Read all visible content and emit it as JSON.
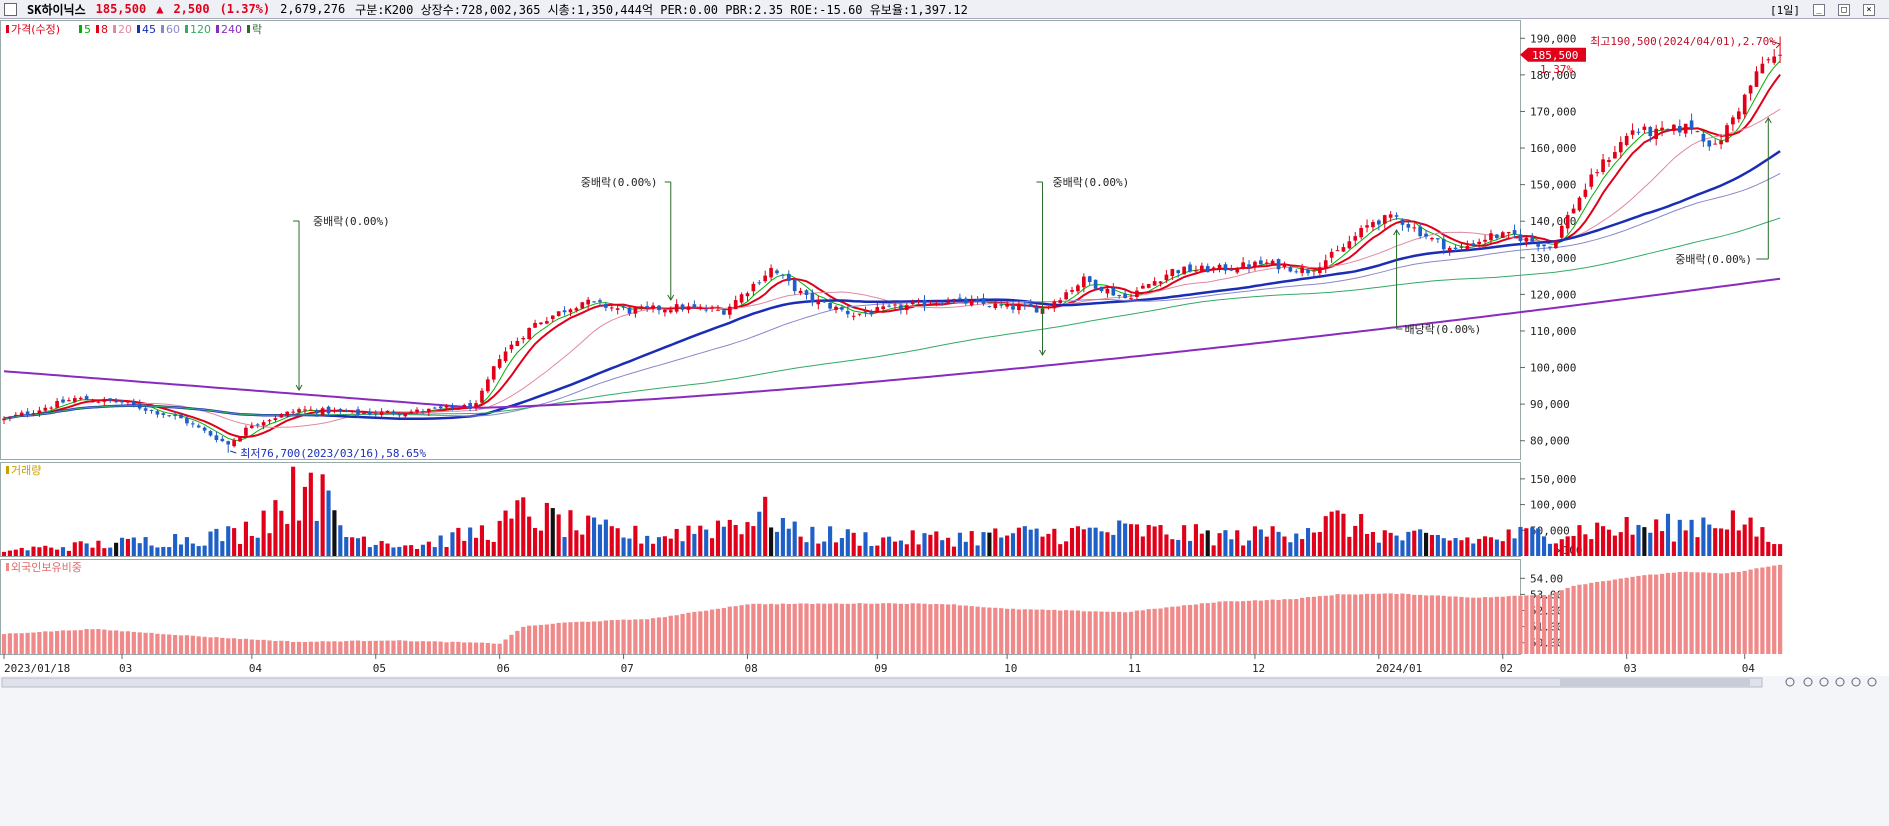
{
  "header": {
    "name": "SK하이닉스",
    "price": "185,500",
    "change_arrow": "▲",
    "change": "2,500",
    "change_pct": "(1.37%)",
    "volume": "2,679,276",
    "info": "구분:K200 상장수:728,002,365 시총:1,350,444억 PER:0.00 PBR:2.35 ROE:-15.60 유보율:1,397.12",
    "period": "[1일]"
  },
  "price_panel": {
    "legend": [
      {
        "label": "가격(수정)",
        "color": "#e0001a"
      },
      {
        "label": "5",
        "color": "#00b000"
      },
      {
        "label": "8",
        "color": "#e0001a"
      },
      {
        "label": "20",
        "color": "#e08aa0"
      },
      {
        "label": "45",
        "color": "#1a2db5"
      },
      {
        "label": "60",
        "color": "#8888cc"
      },
      {
        "label": "120",
        "color": "#33aa66"
      },
      {
        "label": "240",
        "color": "#8a2bc0"
      },
      {
        "label": "락",
        "color": "#2a6a2a"
      }
    ],
    "y_ticks": [
      "190,000",
      "180,000",
      "170,000",
      "160,000",
      "150,000",
      "140,000",
      "130,000",
      "120,000",
      "110,000",
      "100,000",
      "90,000",
      "80,000"
    ],
    "y_values": [
      190000,
      180000,
      170000,
      160000,
      150000,
      140000,
      130000,
      120000,
      110000,
      100000,
      90000,
      80000
    ],
    "current_price": "185,500",
    "current_pct": "1.37%",
    "high_label": "최고190,500(2024/04/01),2.70%",
    "low_label": "최저76,700(2023/03/16),58.65%",
    "annotations": [
      {
        "label": "중배락(0.00%)",
        "date_index": 50
      },
      {
        "label": "중배락(0.00%)",
        "date_index": 113
      },
      {
        "label": "중배락(0.00%)",
        "date_index": 176
      },
      {
        "label": "배당락(0.00%)",
        "date_index": 236
      },
      {
        "label": "중배락(0.00%)",
        "date_index": 299
      }
    ]
  },
  "volume_panel": {
    "legend": "거래량",
    "y_ticks": [
      "150,000",
      "100,000",
      "50,000",
      "×100"
    ],
    "y_values": [
      150000,
      100000,
      50000
    ]
  },
  "foreign_panel": {
    "legend": "외국인보유비중",
    "y_ticks": [
      "54.00",
      "53.00",
      "52.00",
      "51.00",
      "50.00"
    ],
    "y_values": [
      54,
      53,
      52,
      51,
      50
    ]
  },
  "x_axis": [
    "2023/01/18",
    "03",
    "04",
    "05",
    "06",
    "07",
    "08",
    "09",
    "10",
    "11",
    "12",
    "2024/01",
    "02",
    "03",
    "04"
  ],
  "x_positions": [
    0,
    20,
    42,
    63,
    84,
    105,
    126,
    148,
    170,
    191,
    212,
    233,
    254,
    275,
    295
  ],
  "chart_data": {
    "type": "candlestick",
    "x_start": "2023/01/18",
    "x_end": "2024/04/01",
    "close_anchors": [
      [
        0,
        85800
      ],
      [
        12,
        91500
      ],
      [
        20,
        90500
      ],
      [
        30,
        86000
      ],
      [
        38,
        79000
      ],
      [
        42,
        84500
      ],
      [
        50,
        88500
      ],
      [
        60,
        87500
      ],
      [
        70,
        88000
      ],
      [
        80,
        89500
      ],
      [
        84,
        103000
      ],
      [
        90,
        112000
      ],
      [
        98,
        118000
      ],
      [
        106,
        115500
      ],
      [
        114,
        116500
      ],
      [
        122,
        115500
      ],
      [
        130,
        127000
      ],
      [
        136,
        119000
      ],
      [
        144,
        114500
      ],
      [
        152,
        116500
      ],
      [
        160,
        118500
      ],
      [
        170,
        116500
      ],
      [
        176,
        116000
      ],
      [
        183,
        124000
      ],
      [
        190,
        119000
      ],
      [
        198,
        126500
      ],
      [
        206,
        127000
      ],
      [
        214,
        128500
      ],
      [
        221,
        126500
      ],
      [
        226,
        131500
      ],
      [
        232,
        140000
      ],
      [
        236,
        141000
      ],
      [
        242,
        135000
      ],
      [
        246,
        132000
      ],
      [
        252,
        136000
      ],
      [
        256,
        136000
      ],
      [
        262,
        133000
      ],
      [
        266,
        144000
      ],
      [
        270,
        154000
      ],
      [
        276,
        165000
      ],
      [
        280,
        164000
      ],
      [
        286,
        166000
      ],
      [
        290,
        160000
      ],
      [
        294,
        171000
      ],
      [
        298,
        183000
      ],
      [
        301,
        185500
      ]
    ],
    "volume_anchors": [
      [
        0,
        12000
      ],
      [
        20,
        28000
      ],
      [
        40,
        48000
      ],
      [
        52,
        162000
      ],
      [
        58,
        45000
      ],
      [
        70,
        22000
      ],
      [
        84,
        60000
      ],
      [
        88,
        95000
      ],
      [
        92,
        80000
      ],
      [
        98,
        60000
      ],
      [
        110,
        40000
      ],
      [
        130,
        90000
      ],
      [
        134,
        50000
      ],
      [
        150,
        35000
      ],
      [
        170,
        45000
      ],
      [
        190,
        55000
      ],
      [
        210,
        40000
      ],
      [
        226,
        75000
      ],
      [
        236,
        40000
      ],
      [
        250,
        35000
      ],
      [
        262,
        52000
      ],
      [
        270,
        58000
      ],
      [
        284,
        62000
      ],
      [
        292,
        85000
      ],
      [
        301,
        22000
      ]
    ],
    "foreign_anchors": [
      [
        0,
        50.55
      ],
      [
        15,
        50.85
      ],
      [
        35,
        50.35
      ],
      [
        50,
        50.05
      ],
      [
        65,
        50.15
      ],
      [
        80,
        50.0
      ],
      [
        84,
        49.95
      ],
      [
        88,
        51.0
      ],
      [
        95,
        51.25
      ],
      [
        110,
        51.5
      ],
      [
        126,
        52.4
      ],
      [
        150,
        52.45
      ],
      [
        160,
        52.4
      ],
      [
        170,
        52.1
      ],
      [
        190,
        51.9
      ],
      [
        206,
        52.55
      ],
      [
        218,
        52.7
      ],
      [
        226,
        53.0
      ],
      [
        236,
        53.05
      ],
      [
        250,
        52.8
      ],
      [
        262,
        53.0
      ],
      [
        266,
        53.55
      ],
      [
        276,
        54.1
      ],
      [
        284,
        54.4
      ],
      [
        292,
        54.3
      ],
      [
        301,
        54.85
      ]
    ],
    "highest": 190500,
    "lowest": 76700
  }
}
